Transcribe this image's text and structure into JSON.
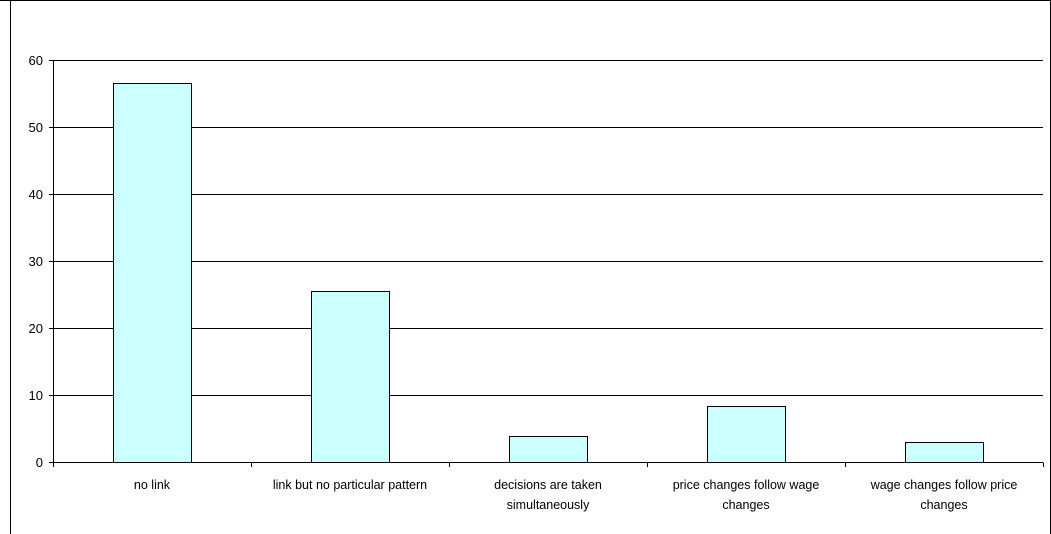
{
  "chart_data": {
    "type": "bar",
    "categories": [
      "no link",
      "link but no particular pattern",
      "decisions are taken simultaneously",
      "price changes follow wage changes",
      "wage changes follow price changes"
    ],
    "category_label_lines": [
      [
        "no link"
      ],
      [
        "link but no particular pattern"
      ],
      [
        "decisions are taken",
        "simultaneously"
      ],
      [
        "price changes follow wage",
        "changes"
      ],
      [
        "wage changes follow price",
        "changes"
      ]
    ],
    "values": [
      56.5,
      25.5,
      3.9,
      8.3,
      3.0
    ],
    "y_ticks": [
      0,
      10,
      20,
      30,
      40,
      50,
      60
    ],
    "ylim": [
      0,
      60
    ],
    "grid": true,
    "legend": false,
    "title": "",
    "xlabel": "",
    "ylabel": "",
    "colors": {
      "bar_fill": "#ccffff",
      "bar_stroke": "#000000",
      "grid": "#000000",
      "axis": "#000000",
      "frame": "#000000"
    }
  }
}
